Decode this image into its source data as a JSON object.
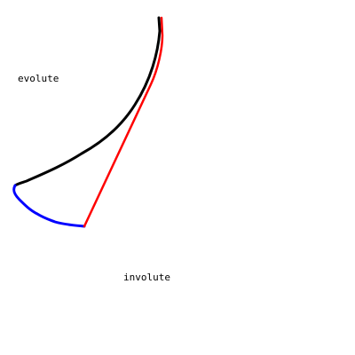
{
  "labels": {
    "evolute": "evolute",
    "involute": "involute"
  },
  "colors": {
    "background": "#ffffff",
    "evolute": "#000000",
    "involute": "#0000ff",
    "tangent": "#ff0000",
    "text": "#000000"
  }
}
